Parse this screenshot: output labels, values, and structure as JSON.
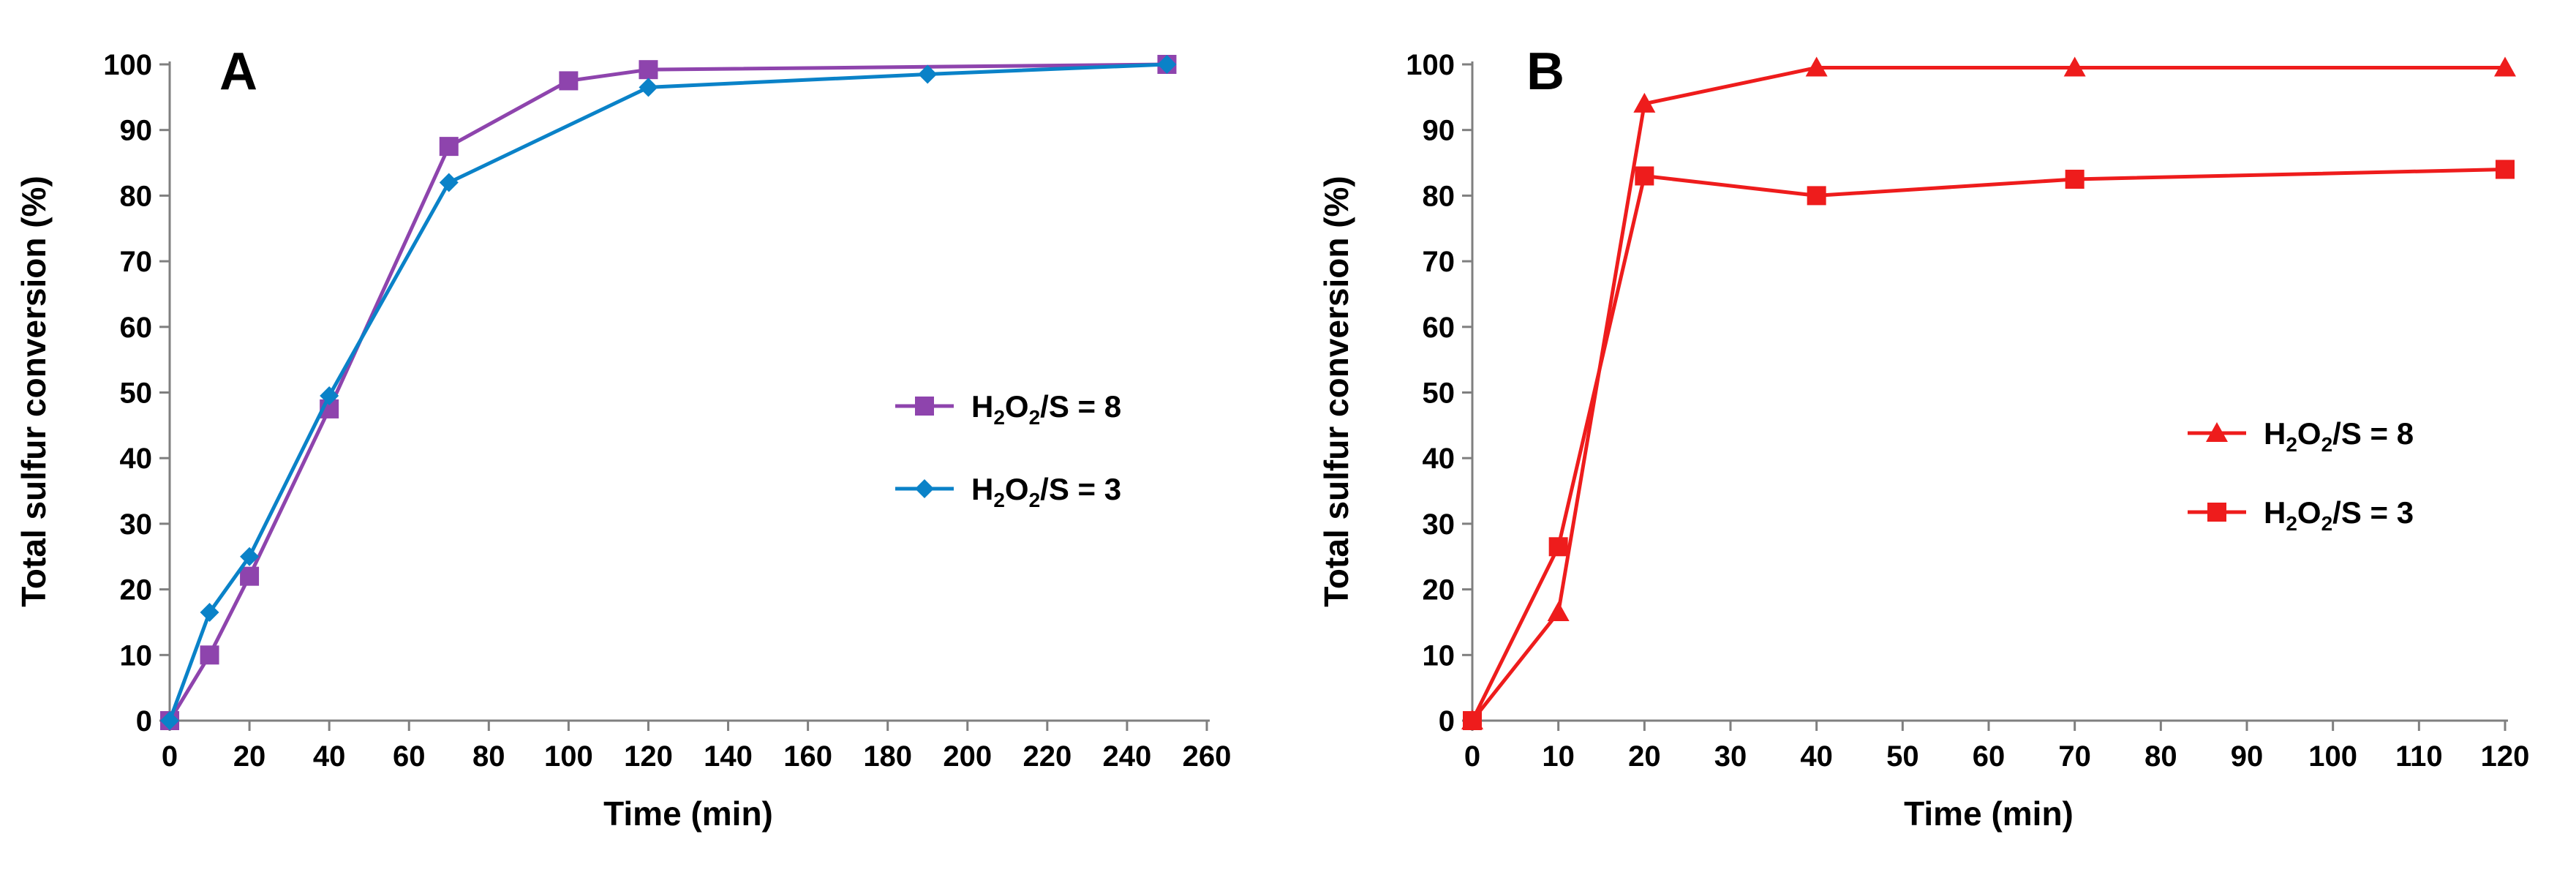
{
  "chart_data": [
    {
      "type": "line",
      "panel": "A",
      "xlabel": "Time (min)",
      "ylabel": "Total sulfur conversion (%)",
      "xlim": [
        0,
        260
      ],
      "ylim": [
        0,
        100
      ],
      "xticks": [
        0,
        20,
        40,
        60,
        80,
        100,
        120,
        140,
        160,
        180,
        200,
        220,
        240,
        260
      ],
      "yticks": [
        0,
        10,
        20,
        30,
        40,
        50,
        60,
        70,
        80,
        90,
        100
      ],
      "legend_position": "center-right",
      "series": [
        {
          "name": "H2O2/S = 8",
          "legend": {
            "pre": "H",
            "s1": "2",
            "mid": "O",
            "s2": "2",
            "post": "/S = 8"
          },
          "color": "#8e44ad",
          "marker": "square",
          "x": [
            0,
            10,
            20,
            40,
            70,
            100,
            120,
            250
          ],
          "y": [
            0,
            10,
            22,
            47.5,
            87.5,
            97.5,
            99.2,
            100
          ]
        },
        {
          "name": "H2O2/S = 3",
          "legend": {
            "pre": "H",
            "s1": "2",
            "mid": "O",
            "s2": "2",
            "post": "/S = 3"
          },
          "color": "#0a82c8",
          "marker": "diamond",
          "x": [
            0,
            10,
            20,
            40,
            70,
            120,
            190,
            250
          ],
          "y": [
            0,
            16.5,
            25,
            49.5,
            82,
            96.5,
            98.5,
            100
          ]
        }
      ]
    },
    {
      "type": "line",
      "panel": "B",
      "xlabel": "Time (min)",
      "ylabel": "Total sulfur conversion (%)",
      "xlim": [
        0,
        120
      ],
      "ylim": [
        0,
        100
      ],
      "xticks": [
        0,
        10,
        20,
        30,
        40,
        50,
        60,
        70,
        80,
        90,
        100,
        110,
        120
      ],
      "yticks": [
        0,
        10,
        20,
        30,
        40,
        50,
        60,
        70,
        80,
        90,
        100
      ],
      "legend_position": "center-right",
      "series": [
        {
          "name": "H2O2/S = 8",
          "legend": {
            "pre": "H",
            "s1": "2",
            "mid": "O",
            "s2": "2",
            "post": "/S = 8"
          },
          "color": "#ee1c1c",
          "marker": "triangle",
          "x": [
            0,
            10,
            20,
            40,
            70,
            120
          ],
          "y": [
            0,
            16.5,
            94,
            99.5,
            99.5,
            99.5
          ]
        },
        {
          "name": "H2O2/S = 3",
          "legend": {
            "pre": "H",
            "s1": "2",
            "mid": "O",
            "s2": "2",
            "post": "/S = 3"
          },
          "color": "#ee1c1c",
          "marker": "square",
          "x": [
            0,
            10,
            20,
            40,
            70,
            120
          ],
          "y": [
            0,
            26.5,
            83,
            80,
            82.5,
            84
          ]
        }
      ]
    }
  ]
}
